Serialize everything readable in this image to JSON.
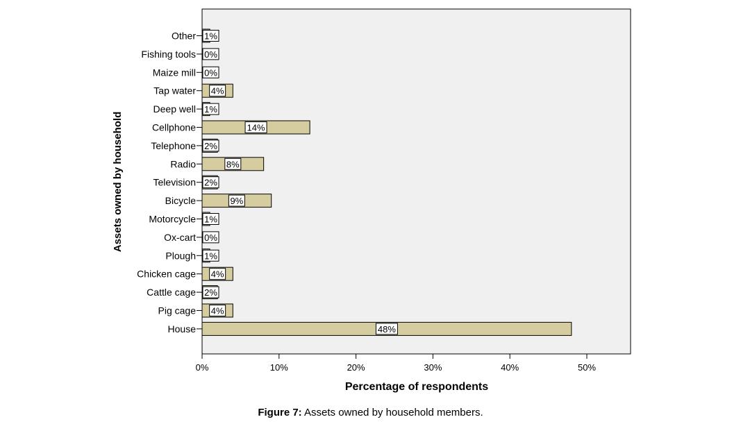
{
  "chart_data": {
    "type": "bar",
    "orientation": "horizontal",
    "categories": [
      "Other",
      "Fishing tools",
      "Maize mill",
      "Tap water",
      "Deep well",
      "Cellphone",
      "Telephone",
      "Radio",
      "Television",
      "Bicycle",
      "Motorcycle",
      "Ox-cart",
      "Plough",
      "Chicken cage",
      "Cattle cage",
      "Pig cage",
      "House"
    ],
    "values": [
      1,
      0,
      0,
      4,
      1,
      14,
      2,
      8,
      2,
      9,
      1,
      0,
      1,
      4,
      2,
      4,
      48
    ],
    "data_labels": [
      "1%",
      "0%",
      "0%",
      "4%",
      "1%",
      "14%",
      "2%",
      "8%",
      "2%",
      "9%",
      "1%",
      "0%",
      "1%",
      "4%",
      "2%",
      "4%",
      "48%"
    ],
    "xlabel": "Percentage of respondents",
    "ylabel": "Assets owned by household",
    "xlim": [
      0,
      55
    ],
    "xticks": [
      0,
      10,
      20,
      30,
      40,
      50
    ],
    "xtick_labels": [
      "0%",
      "10%",
      "20%",
      "30%",
      "40%",
      "50%"
    ],
    "grid": false,
    "bar_color": "#d5cda0",
    "plot_background": "#f0f0f0"
  },
  "caption": {
    "label": "Figure 7:",
    "text": " Assets owned by household members."
  }
}
